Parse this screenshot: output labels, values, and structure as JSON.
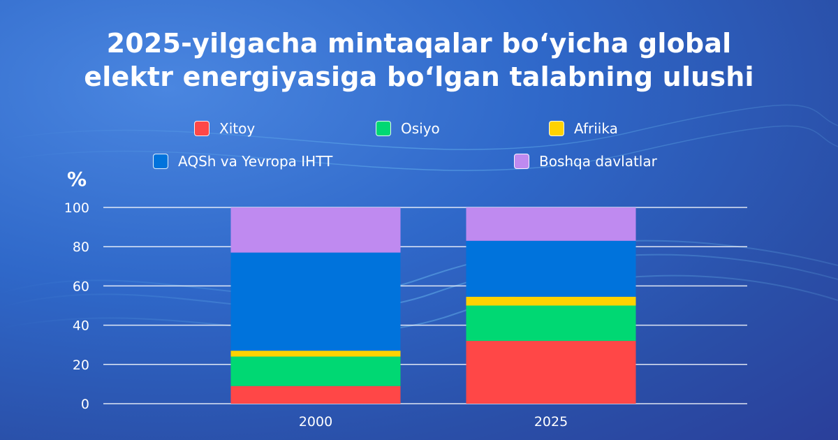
{
  "colors": {
    "xitoy": "#ff4747",
    "osiyo": "#00d873",
    "afriika": "#ffd200",
    "aqsh": "#0073dc",
    "boshqa": "#bf8af0"
  },
  "chart_data": {
    "type": "bar",
    "stacked": true,
    "title": "2025-yilgacha mintaqalar bo‘yicha global elektr energiyasiga bo‘lgan talabning ulushi",
    "title_lines": [
      "2025-yilgacha mintaqalar bo‘yicha global",
      "elektr energiyasiga bo‘lgan talabning ulushi"
    ],
    "ylabel": "%",
    "ylim": [
      0,
      100
    ],
    "yticks": [
      0,
      20,
      40,
      60,
      80,
      100
    ],
    "grid": true,
    "legend_position": "top",
    "categories": [
      "2000",
      "2025"
    ],
    "series": [
      {
        "name": "Xitoy",
        "key": "xitoy",
        "values": [
          9,
          32
        ]
      },
      {
        "name": "Osiyo",
        "key": "osiyo",
        "values": [
          15,
          18
        ]
      },
      {
        "name": "Afriika",
        "key": "afriika",
        "values": [
          3,
          4.5
        ]
      },
      {
        "name": "AQSh va Yevropa IHTT",
        "key": "aqsh",
        "values": [
          50,
          28.5
        ]
      },
      {
        "name": "Boshqa davlatlar",
        "key": "boshqa",
        "values": [
          23,
          17
        ]
      }
    ]
  }
}
